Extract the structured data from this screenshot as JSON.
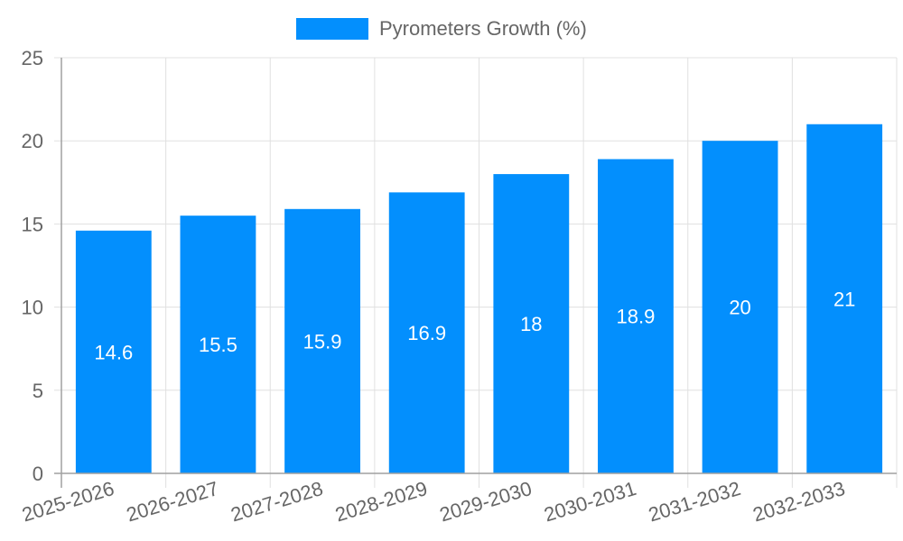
{
  "chart_data": {
    "type": "bar",
    "title": "",
    "legend": [
      "Pyrometers Growth (%)"
    ],
    "legend_position": "top",
    "categories": [
      "2025-2026",
      "2026-2027",
      "2027-2028",
      "2028-2029",
      "2029-2030",
      "2030-2031",
      "2031-2032",
      "2032-2033"
    ],
    "series": [
      {
        "name": "Pyrometers Growth (%)",
        "values": [
          14.6,
          15.5,
          15.9,
          16.9,
          18,
          18.9,
          20,
          21
        ],
        "color": "#038ffd"
      }
    ],
    "data_labels": [
      "14.6",
      "15.5",
      "15.9",
      "16.9",
      "18",
      "18.9",
      "20",
      "21"
    ],
    "xlabel": "",
    "ylabel": "",
    "ylim": [
      0,
      25
    ],
    "yticks": [
      "0",
      "5",
      "10",
      "15",
      "20",
      "25"
    ],
    "grid": true
  },
  "legend": {
    "label": "Pyrometers Growth (%)",
    "color": "#038ffd"
  }
}
